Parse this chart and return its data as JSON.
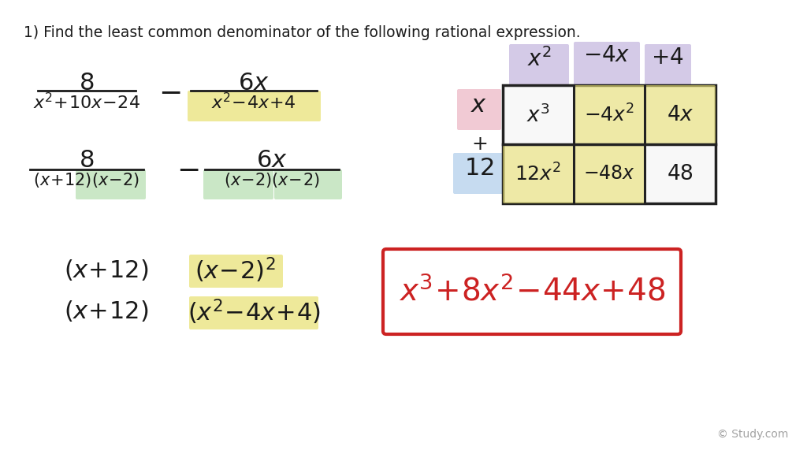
{
  "bg_color": "#ffffff",
  "title": "1) Find the least common denominator of the following rational expression.",
  "highlight_yellow": "#e8e070",
  "highlight_green": "#a8d8a0",
  "highlight_purple": "#b8a8d8",
  "highlight_pink": "#e8a8b8",
  "highlight_blue": "#a8c8e8",
  "red_color": "#cc2222",
  "dark_color": "#1a1a1a",
  "grid_color": "#222222",
  "watermark": "© Study.com"
}
